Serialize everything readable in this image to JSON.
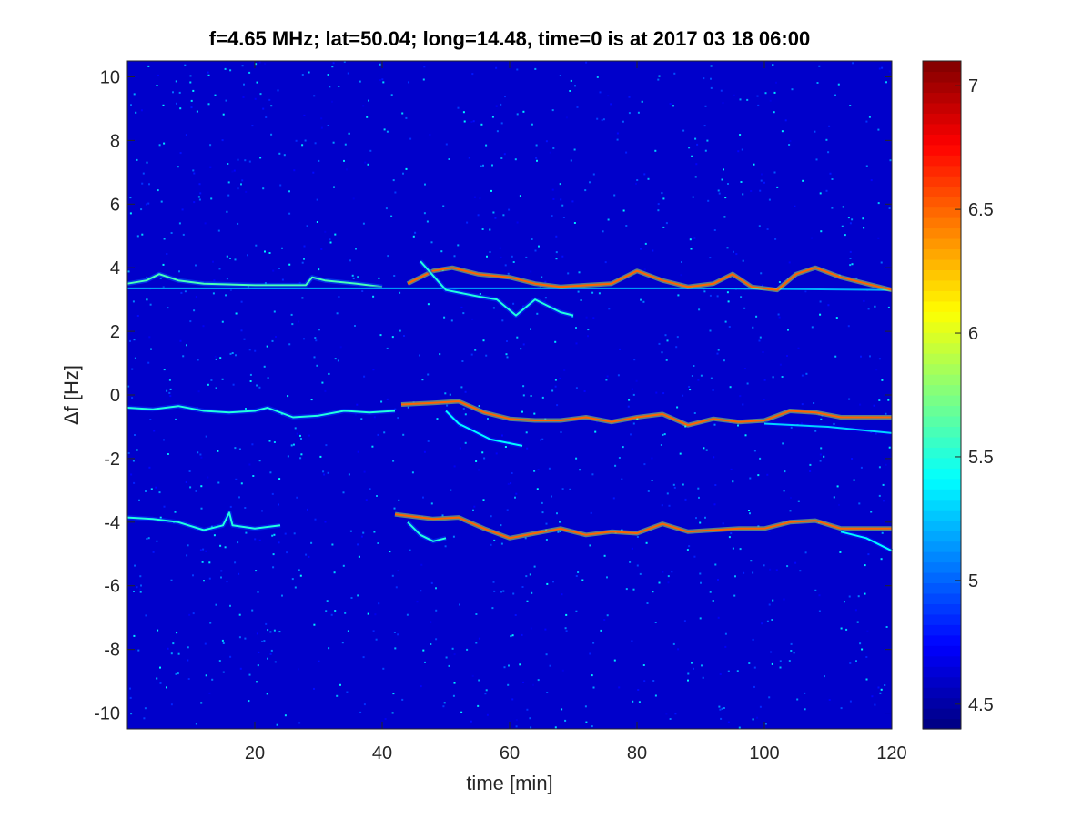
{
  "chart_data": {
    "type": "heatmap",
    "title": "f=4.65 MHz;  lat=50.04; long=14.48, time=0 is at 2017 03 18 06:00",
    "xlabel": "time [min]",
    "ylabel": "Δf [Hz]",
    "xlim": [
      0,
      120
    ],
    "ylim": [
      -10.5,
      10.5
    ],
    "xticks": [
      20,
      40,
      60,
      80,
      100,
      120
    ],
    "yticks": [
      10,
      8,
      6,
      4,
      2,
      0,
      -2,
      -4,
      -6,
      -8,
      -10
    ],
    "colorbar": {
      "clim": [
        4.4,
        7.1
      ],
      "ticks": [
        7,
        6.5,
        6,
        5.5,
        5,
        4.5
      ],
      "colormap": "jet"
    },
    "background_level": 4.6,
    "traces": [
      {
        "name": "",
        "level": 5.6,
        "points": [
          [
            0,
            3.5
          ],
          [
            3,
            3.6
          ],
          [
            5,
            3.8
          ],
          [
            8,
            3.6
          ],
          [
            12,
            3.5
          ],
          [
            20,
            3.45
          ],
          [
            28,
            3.45
          ],
          [
            29,
            3.7
          ],
          [
            31,
            3.6
          ],
          [
            36,
            3.5
          ],
          [
            40,
            3.4
          ]
        ]
      },
      {
        "name": "",
        "level": 5.2,
        "points": [
          [
            0,
            3.35
          ],
          [
            30,
            3.35
          ],
          [
            60,
            3.35
          ],
          [
            90,
            3.35
          ],
          [
            120,
            3.3
          ]
        ]
      },
      {
        "name": "",
        "level": 6.5,
        "points": [
          [
            44,
            3.5
          ],
          [
            48,
            3.9
          ],
          [
            51,
            4.0
          ],
          [
            55,
            3.8
          ],
          [
            60,
            3.7
          ],
          [
            64,
            3.5
          ],
          [
            68,
            3.4
          ],
          [
            72,
            3.45
          ],
          [
            76,
            3.5
          ],
          [
            80,
            3.9
          ],
          [
            84,
            3.6
          ],
          [
            88,
            3.4
          ],
          [
            92,
            3.5
          ],
          [
            95,
            3.8
          ],
          [
            98,
            3.4
          ],
          [
            102,
            3.3
          ],
          [
            105,
            3.8
          ],
          [
            108,
            4.0
          ],
          [
            112,
            3.7
          ],
          [
            116,
            3.5
          ],
          [
            120,
            3.3
          ]
        ]
      },
      {
        "name": "",
        "level": 5.5,
        "points": [
          [
            46,
            4.2
          ],
          [
            50,
            3.3
          ],
          [
            55,
            3.1
          ],
          [
            58,
            3.0
          ],
          [
            61,
            2.5
          ],
          [
            64,
            3.0
          ],
          [
            68,
            2.6
          ],
          [
            70,
            2.5
          ]
        ]
      },
      {
        "name": "",
        "level": 5.5,
        "points": [
          [
            0,
            -0.4
          ],
          [
            4,
            -0.45
          ],
          [
            8,
            -0.35
          ],
          [
            12,
            -0.5
          ],
          [
            16,
            -0.55
          ],
          [
            20,
            -0.5
          ],
          [
            22,
            -0.4
          ],
          [
            26,
            -0.7
          ],
          [
            30,
            -0.65
          ],
          [
            34,
            -0.5
          ],
          [
            38,
            -0.55
          ],
          [
            42,
            -0.5
          ]
        ]
      },
      {
        "name": "",
        "level": 6.5,
        "points": [
          [
            43,
            -0.3
          ],
          [
            48,
            -0.25
          ],
          [
            52,
            -0.2
          ],
          [
            56,
            -0.55
          ],
          [
            60,
            -0.75
          ],
          [
            64,
            -0.8
          ],
          [
            68,
            -0.8
          ],
          [
            72,
            -0.7
          ],
          [
            76,
            -0.85
          ],
          [
            80,
            -0.7
          ],
          [
            84,
            -0.6
          ],
          [
            88,
            -0.95
          ],
          [
            92,
            -0.75
          ],
          [
            96,
            -0.85
          ],
          [
            100,
            -0.8
          ],
          [
            104,
            -0.5
          ],
          [
            108,
            -0.55
          ],
          [
            112,
            -0.7
          ],
          [
            116,
            -0.7
          ],
          [
            120,
            -0.7
          ]
        ]
      },
      {
        "name": "",
        "level": 5.4,
        "points": [
          [
            50,
            -0.5
          ],
          [
            52,
            -0.9
          ],
          [
            54,
            -1.1
          ],
          [
            57,
            -1.4
          ],
          [
            62,
            -1.6
          ]
        ]
      },
      {
        "name": "",
        "level": 5.3,
        "points": [
          [
            100,
            -0.9
          ],
          [
            110,
            -1.0
          ],
          [
            120,
            -1.2
          ]
        ]
      },
      {
        "name": "",
        "level": 5.5,
        "points": [
          [
            0,
            -3.85
          ],
          [
            4,
            -3.9
          ],
          [
            8,
            -4.0
          ],
          [
            12,
            -4.25
          ],
          [
            15,
            -4.1
          ],
          [
            16,
            -3.7
          ],
          [
            16.5,
            -4.1
          ],
          [
            20,
            -4.2
          ],
          [
            24,
            -4.1
          ]
        ]
      },
      {
        "name": "",
        "level": 6.5,
        "points": [
          [
            42,
            -3.75
          ],
          [
            48,
            -3.9
          ],
          [
            52,
            -3.85
          ],
          [
            56,
            -4.2
          ],
          [
            60,
            -4.5
          ],
          [
            64,
            -4.35
          ],
          [
            68,
            -4.2
          ],
          [
            72,
            -4.4
          ],
          [
            76,
            -4.3
          ],
          [
            80,
            -4.35
          ],
          [
            84,
            -4.05
          ],
          [
            88,
            -4.3
          ],
          [
            92,
            -4.25
          ],
          [
            96,
            -4.2
          ],
          [
            100,
            -4.2
          ],
          [
            104,
            -4.0
          ],
          [
            108,
            -3.95
          ],
          [
            112,
            -4.2
          ],
          [
            116,
            -4.2
          ],
          [
            120,
            -4.2
          ]
        ]
      },
      {
        "name": "",
        "level": 5.5,
        "points": [
          [
            44,
            -4.0
          ],
          [
            46,
            -4.4
          ],
          [
            48,
            -4.6
          ],
          [
            50,
            -4.5
          ]
        ]
      },
      {
        "name": "",
        "level": 5.4,
        "points": [
          [
            112,
            -4.3
          ],
          [
            116,
            -4.5
          ],
          [
            120,
            -4.9
          ]
        ]
      }
    ]
  }
}
